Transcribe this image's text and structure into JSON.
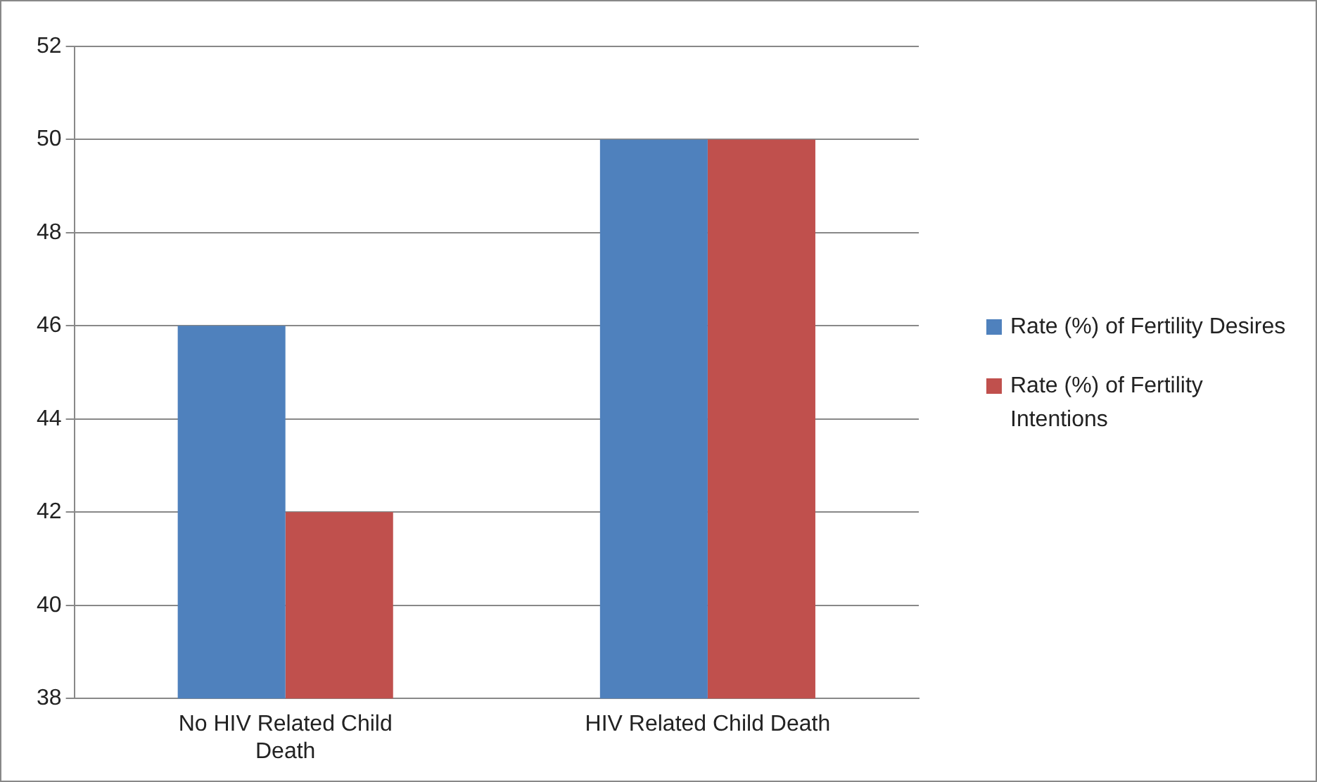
{
  "chart_data": {
    "type": "bar",
    "categories": [
      "No HIV Related Child Death",
      "HIV Related Child Death"
    ],
    "series": [
      {
        "name": "Rate (%) of Fertility Desires",
        "color": "#4f81bd",
        "values": [
          46,
          50
        ]
      },
      {
        "name": "Rate (%) of Fertility Intentions",
        "color": "#c0504d",
        "values": [
          42,
          50
        ]
      }
    ],
    "ylim": [
      38,
      52
    ],
    "yticks": [
      38,
      40,
      42,
      44,
      46,
      48,
      50,
      52
    ],
    "grid": "y",
    "legend": "right"
  }
}
